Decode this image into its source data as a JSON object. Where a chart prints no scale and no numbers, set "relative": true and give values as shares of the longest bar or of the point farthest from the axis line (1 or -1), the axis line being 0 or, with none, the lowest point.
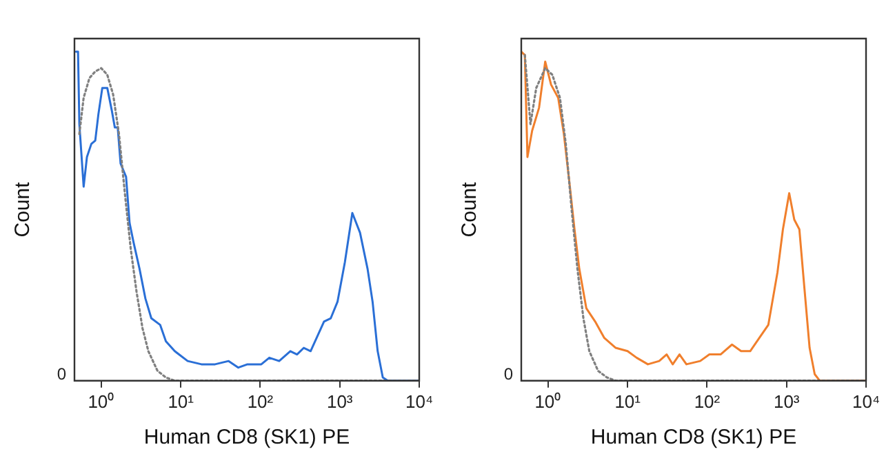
{
  "chart_data": [
    {
      "type": "line",
      "relative": true,
      "xlabel": "Human CD8 (SK1) PE",
      "ylabel": "Count",
      "log": "x",
      "grid": false,
      "legend": false,
      "marker": "none",
      "xlim": [
        0.46,
        10000
      ],
      "xticks": [
        {
          "value": 1,
          "label": "10⁰"
        },
        {
          "value": 10,
          "label": "10¹"
        },
        {
          "value": 100,
          "label": "10²"
        },
        {
          "value": 1000,
          "label": "10³"
        },
        {
          "value": 10000,
          "label": "10⁴"
        }
      ],
      "annotations": [
        "0"
      ],
      "series": [
        {
          "color": "#808080",
          "line_style": "dotted",
          "x": [
            0.53,
            0.6,
            0.71,
            0.84,
            1.0,
            1.19,
            1.41,
            1.67,
            1.98,
            2.35,
            2.78,
            3.3,
            3.91,
            5.1,
            6.5,
            8.4,
            10000
          ],
          "values": [
            0.75,
            0.86,
            0.92,
            0.94,
            0.95,
            0.93,
            0.87,
            0.75,
            0.57,
            0.4,
            0.27,
            0.16,
            0.09,
            0.03,
            0.01,
            0,
            0
          ]
        },
        {
          "color": "#2a6fd6",
          "line_style": "solid",
          "x": [
            0.48,
            0.51,
            0.53,
            0.6,
            0.66,
            0.75,
            0.84,
            0.92,
            1.03,
            1.19,
            1.36,
            1.48,
            1.61,
            1.75,
            2.05,
            2.27,
            2.55,
            3.03,
            3.59,
            4.26,
            5.5,
            6.5,
            8.4,
            12.2,
            18.2,
            27,
            40,
            53,
            69,
            103,
            130,
            173,
            239,
            290,
            353,
            430,
            634,
            771,
            937,
            1160,
            1440,
            1800,
            2240,
            2590,
            3000,
            3480,
            4030,
            10000
          ],
          "values": [
            1.0,
            1.0,
            0.78,
            0.59,
            0.68,
            0.72,
            0.73,
            0.81,
            0.89,
            0.89,
            0.82,
            0.77,
            0.77,
            0.66,
            0.62,
            0.48,
            0.42,
            0.34,
            0.25,
            0.19,
            0.17,
            0.12,
            0.09,
            0.06,
            0.05,
            0.05,
            0.06,
            0.04,
            0.05,
            0.05,
            0.07,
            0.06,
            0.09,
            0.08,
            0.1,
            0.09,
            0.18,
            0.19,
            0.24,
            0.36,
            0.51,
            0.45,
            0.34,
            0.24,
            0.09,
            0.01,
            0,
            0
          ]
        }
      ]
    },
    {
      "type": "line",
      "relative": true,
      "xlabel": "Human CD8 (SK1) PE",
      "ylabel": "Count",
      "log": "x",
      "grid": false,
      "legend": false,
      "marker": "none",
      "xlim": [
        0.46,
        10000
      ],
      "xticks": [
        {
          "value": 1,
          "label": "10⁰"
        },
        {
          "value": 10,
          "label": "10¹"
        },
        {
          "value": 100,
          "label": "10²"
        },
        {
          "value": 1000,
          "label": "10³"
        },
        {
          "value": 10000,
          "label": "10⁴"
        }
      ],
      "annotations": [
        "0"
      ],
      "series": [
        {
          "color": "#808080",
          "line_style": "dotted",
          "x": [
            0.51,
            0.6,
            0.71,
            0.92,
            1.13,
            1.41,
            1.67,
            1.98,
            2.34,
            2.78,
            3.3,
            4.26,
            5.5,
            7.1,
            10000
          ],
          "values": [
            0.99,
            0.78,
            0.89,
            0.95,
            0.93,
            0.86,
            0.72,
            0.52,
            0.34,
            0.19,
            0.09,
            0.03,
            0.01,
            0,
            0
          ]
        },
        {
          "color": "#f07f2c",
          "line_style": "solid",
          "x": [
            0.46,
            0.51,
            0.55,
            0.63,
            0.77,
            0.92,
            1.09,
            1.34,
            1.58,
            1.88,
            2.15,
            2.47,
            3.03,
            3.91,
            5.1,
            7.1,
            10,
            13,
            18,
            25,
            31,
            37,
            45,
            55,
            82,
            107,
            148,
            206,
            268,
            349,
            454,
            590,
            769,
            900,
            1080,
            1250,
            1450,
            1680,
            1950,
            2260,
            2620,
            10000
          ],
          "values": [
            1.0,
            0.99,
            0.68,
            0.76,
            0.83,
            0.97,
            0.9,
            0.86,
            0.75,
            0.59,
            0.46,
            0.34,
            0.22,
            0.18,
            0.13,
            0.1,
            0.09,
            0.07,
            0.05,
            0.06,
            0.08,
            0.05,
            0.08,
            0.05,
            0.06,
            0.08,
            0.08,
            0.11,
            0.09,
            0.09,
            0.13,
            0.17,
            0.33,
            0.46,
            0.57,
            0.49,
            0.46,
            0.28,
            0.1,
            0.02,
            0,
            0
          ]
        }
      ]
    }
  ]
}
